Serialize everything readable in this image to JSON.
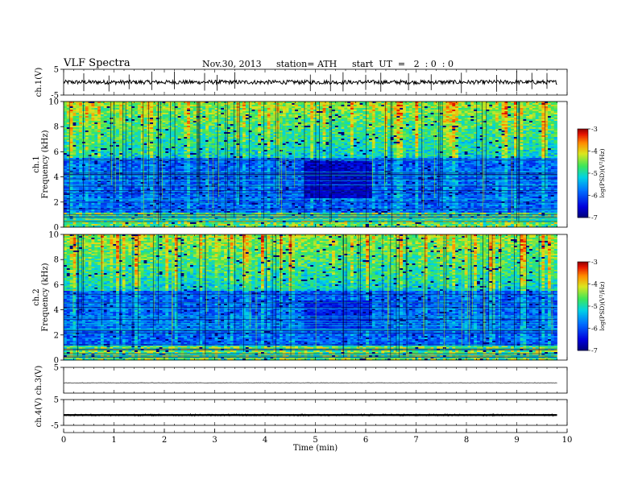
{
  "header": {
    "title": "VLF Spectra",
    "date": "Nov.30, 2013",
    "station": "station= ATH",
    "start": "start  UT  =   2  : 0  : 0"
  },
  "chart_data": [
    {
      "type": "line",
      "name": "ch1-waveform",
      "ylabel": "ch.1(V)",
      "ylim": [
        -5,
        5
      ],
      "yticks": [
        -5,
        5
      ],
      "xlim": [
        0,
        10
      ],
      "baseline": 0,
      "noise_amplitude": 0.8,
      "spikes": [
        0.4,
        0.9,
        1.3,
        1.75,
        2.2,
        2.8,
        3.05,
        3.4,
        4.9,
        5.3,
        5.55,
        6.0,
        6.3,
        6.85,
        7.3,
        7.9,
        8.6,
        9.0,
        9.3,
        9.6
      ]
    },
    {
      "type": "heatmap",
      "name": "ch1-spectrogram",
      "ylabel": "Frequency (kHz)",
      "channel_label": "ch.1",
      "ylim": [
        0,
        10
      ],
      "yticks": [
        0,
        2,
        4,
        6,
        8,
        10
      ],
      "xlim": [
        0,
        9.8
      ],
      "colorbar": {
        "label": "log(PSD)(V²/Hz)",
        "range": [
          -7,
          -3
        ],
        "ticks": [
          -3,
          -4,
          -5,
          -6,
          -7
        ]
      },
      "features": [
        {
          "x0": 4.8,
          "x1": 6.15,
          "f0": 2.3,
          "f1": 5.2,
          "level": -6.9,
          "note": "low-power patch"
        }
      ]
    },
    {
      "type": "heatmap",
      "name": "ch2-spectrogram",
      "ylabel": "Frequency (kHz)",
      "channel_label": "ch.2",
      "ylim": [
        0,
        10
      ],
      "yticks": [
        0,
        2,
        4,
        6,
        8,
        10
      ],
      "xlim": [
        0,
        9.8
      ],
      "colorbar": {
        "label": "log(PSD)(V²/Hz)",
        "range": [
          -7,
          -3
        ],
        "ticks": [
          -3,
          -4,
          -5,
          -6,
          -7
        ]
      },
      "features": [
        {
          "x0": 4.8,
          "x1": 6.15,
          "f0": 2.4,
          "f1": 4.8,
          "level": -6.6,
          "note": "low-power patch"
        }
      ]
    },
    {
      "type": "line",
      "name": "ch3-waveform",
      "ylabel": "ch.3(V)",
      "ylim": [
        -5,
        5
      ],
      "yticks": [
        5
      ],
      "xlim": [
        0,
        10
      ],
      "baseline": -1.0,
      "noise_amplitude": 0.05
    },
    {
      "type": "line",
      "name": "ch4-waveform",
      "ylabel": "ch.4(V)",
      "ylim": [
        -5,
        5
      ],
      "yticks": [
        -5,
        5
      ],
      "xlim": [
        0,
        10
      ],
      "baseline": -1.0,
      "noise_amplitude": 0.35
    }
  ],
  "x_axis": {
    "label": "Time (min)",
    "ticks": [
      0,
      1,
      2,
      3,
      4,
      5,
      6,
      7,
      8,
      9,
      10
    ]
  }
}
